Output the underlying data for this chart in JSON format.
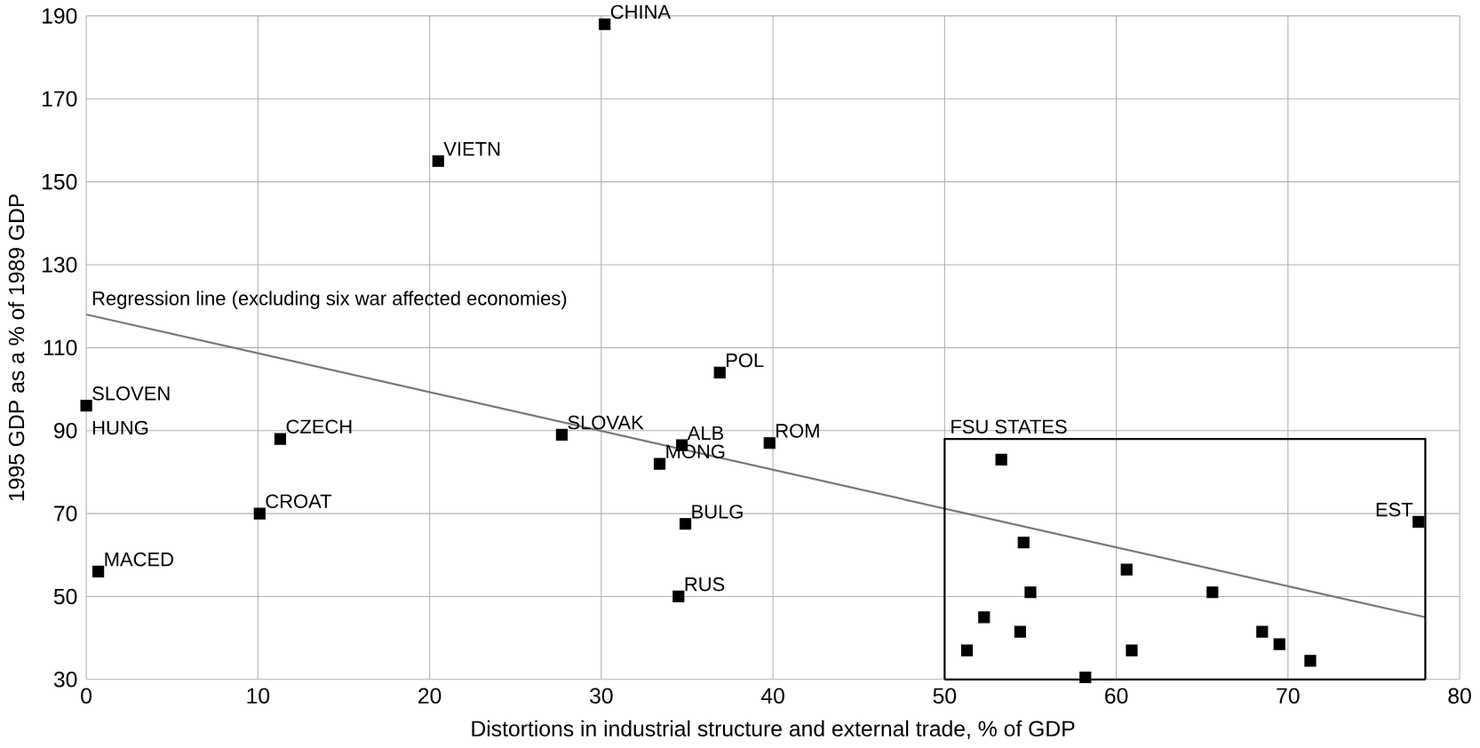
{
  "chart_data": {
    "type": "scatter",
    "xlabel": "Distortions in industrial structure and external trade, % of GDP",
    "ylabel": "1995 GDP as a % of 1989 GDP",
    "xlim": [
      0,
      80
    ],
    "xticks": [
      0,
      10,
      20,
      30,
      40,
      50,
      60,
      70,
      80
    ],
    "ylim": [
      30,
      190
    ],
    "yticks": [
      30,
      50,
      70,
      90,
      110,
      130,
      150,
      170,
      190
    ],
    "grid": true,
    "series": [
      {
        "color": "#000000",
        "marker": "square",
        "x": [
          30.2,
          20.5,
          0,
          11.3,
          10.1,
          0.7,
          27.7,
          33.4,
          34.7,
          34.9,
          34.5,
          36.9,
          39.8,
          53.3,
          54.6,
          55.0,
          52.3,
          54.4,
          51.3,
          58.2,
          60.6,
          60.9,
          65.6,
          68.5,
          69.5,
          71.3,
          77.6
        ],
        "values": [
          188,
          155,
          96,
          88,
          70,
          56,
          89,
          82,
          86.5,
          67.5,
          50,
          104,
          87,
          83,
          63,
          51,
          45,
          41.5,
          37,
          30.5,
          56.5,
          37,
          51,
          41.5,
          38.5,
          34.5,
          68
        ]
      },
      {
        "type": "line",
        "marker": "none",
        "color": "#777777",
        "x": [
          0,
          78
        ],
        "values": [
          118,
          45
        ]
      },
      {
        "type": "line",
        "marker": "none",
        "color": "#000000",
        "x": [
          50,
          50,
          78,
          78
        ],
        "values": [
          30,
          88,
          88,
          30
        ]
      },
      {
        "type": "line",
        "marker": "none",
        "color": "#000000",
        "x": [
          50,
          78
        ],
        "values": [
          30,
          30
        ]
      }
    ],
    "annotations": [
      {
        "text": "Regression line (excluding six war affected economies)",
        "x": 0,
        "y": 118
      },
      {
        "text": "CHINA",
        "x": 30.2,
        "y": 188
      },
      {
        "text": "VIETN",
        "x": 20.5,
        "y": 155
      },
      {
        "text": "SLOVEN",
        "x": 0,
        "y": 96
      },
      "HUNG",
      {
        "text": "CZECH",
        "x": 11.3,
        "y": 88
      },
      {
        "text": "CROAT",
        "x": 10.1,
        "y": 70
      },
      {
        "text": "MACED",
        "x": 0.7,
        "y": 56
      },
      {
        "text": "SLOVAK",
        "x": 27.7,
        "y": 89
      },
      {
        "text": "MONG",
        "x": 33.4,
        "y": 82
      },
      {
        "text": "ALB",
        "x": 34.7,
        "y": 86.5
      },
      {
        "text": "BULG",
        "x": 34.9,
        "y": 67.5
      },
      {
        "text": "RUS",
        "x": 34.5,
        "y": 50
      },
      {
        "text": "POL",
        "x": 36.9,
        "y": 104
      },
      {
        "text": "ROM",
        "x": 39.8,
        "y": 87
      },
      {
        "text": "FSU STATES",
        "x": 50,
        "y": 88
      },
      {
        "text": "EST",
        "x": 77.6,
        "y": 68
      }
    ]
  }
}
